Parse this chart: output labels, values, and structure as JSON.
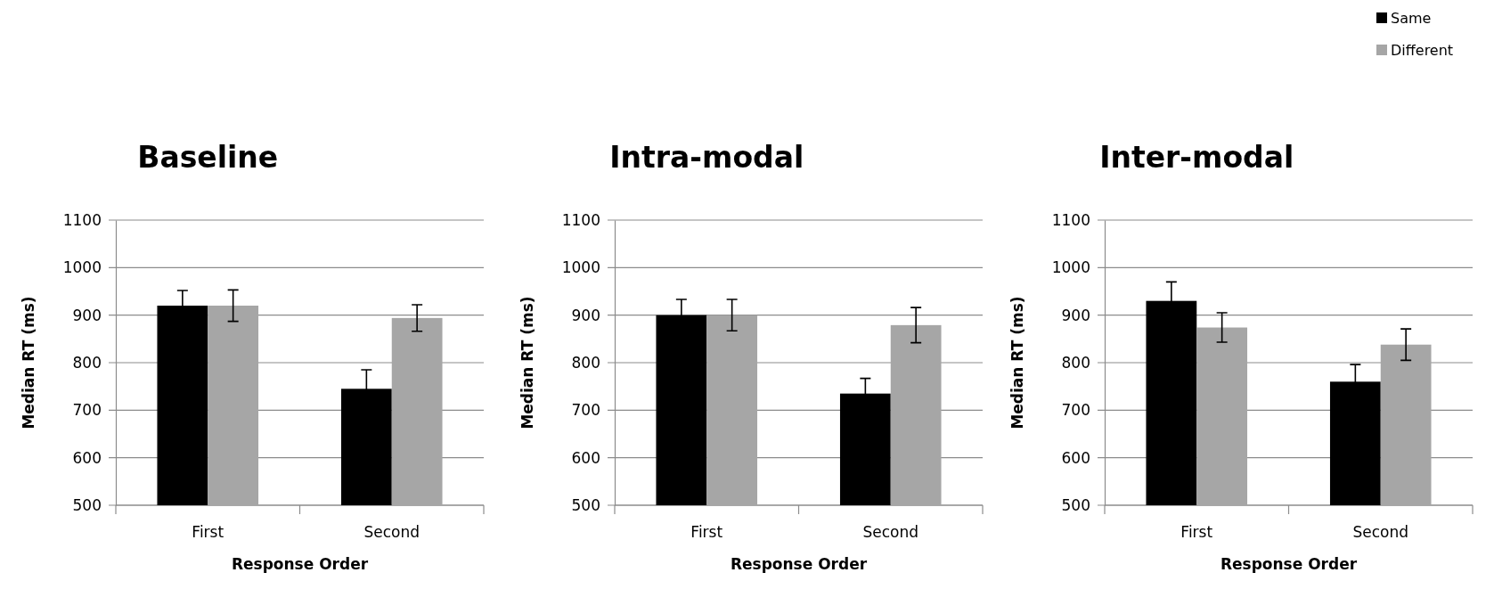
{
  "chart_data": [
    {
      "type": "bar",
      "title": "Baseline",
      "xlabel": "Response Order",
      "ylabel": "Median RT (ms)",
      "categories": [
        "First",
        "Second"
      ],
      "ylim": [
        500,
        1100
      ],
      "yticks": [
        500,
        600,
        700,
        800,
        900,
        1000,
        1100
      ],
      "grid": "y",
      "series": [
        {
          "color": "#000000",
          "values": [
            920,
            745
          ],
          "errors": [
            32,
            40
          ]
        },
        {
          "color": "#a6a6a6",
          "values": [
            920,
            894
          ],
          "errors": [
            33,
            28
          ]
        }
      ]
    },
    {
      "type": "bar",
      "title": "Intra-modal",
      "xlabel": "Response Order",
      "ylabel": "Median RT (ms)",
      "categories": [
        "First",
        "Second"
      ],
      "ylim": [
        500,
        1100
      ],
      "yticks": [
        500,
        600,
        700,
        800,
        900,
        1000,
        1100
      ],
      "grid": "y",
      "series": [
        {
          "color": "#000000",
          "values": [
            900,
            735
          ],
          "errors": [
            33,
            32
          ]
        },
        {
          "color": "#a6a6a6",
          "values": [
            900,
            879
          ],
          "errors": [
            33,
            37
          ]
        }
      ]
    },
    {
      "type": "bar",
      "title": "Inter-modal",
      "xlabel": "Response Order",
      "ylabel": "Median RT (ms)",
      "categories": [
        "First",
        "Second"
      ],
      "ylim": [
        500,
        1100
      ],
      "yticks": [
        500,
        600,
        700,
        800,
        900,
        1000,
        1100
      ],
      "grid": "y",
      "legend": "top right",
      "series": [
        {
          "name": "Same",
          "color": "#000000",
          "values": [
            930,
            760
          ],
          "errors": [
            40,
            36
          ]
        },
        {
          "name": "Different",
          "color": "#a6a6a6",
          "values": [
            874,
            838
          ],
          "errors": [
            31,
            33
          ]
        }
      ]
    }
  ]
}
